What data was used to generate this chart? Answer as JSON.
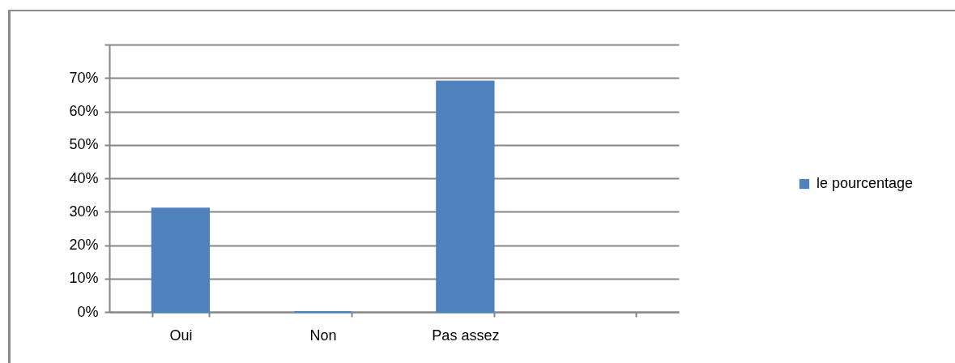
{
  "chart_data": {
    "type": "bar",
    "categories": [
      "Oui",
      "Non",
      "Pas assez",
      null
    ],
    "series": [
      {
        "name": "le pourcentage",
        "color": "#4f81bd",
        "values": [
          31,
          0,
          69,
          null
        ]
      }
    ],
    "ylim": [
      0,
      80
    ],
    "yticks": [
      {
        "value": 0,
        "label": "0%"
      },
      {
        "value": 10,
        "label": "10%"
      },
      {
        "value": 20,
        "label": "20%"
      },
      {
        "value": 30,
        "label": "30%"
      },
      {
        "value": 40,
        "label": "40%"
      },
      {
        "value": 50,
        "label": "50%"
      },
      {
        "value": 60,
        "label": "60%"
      },
      {
        "value": 70,
        "label": "70%"
      },
      {
        "value": 80,
        "label": null
      }
    ],
    "grid": "y",
    "legend": "right"
  }
}
